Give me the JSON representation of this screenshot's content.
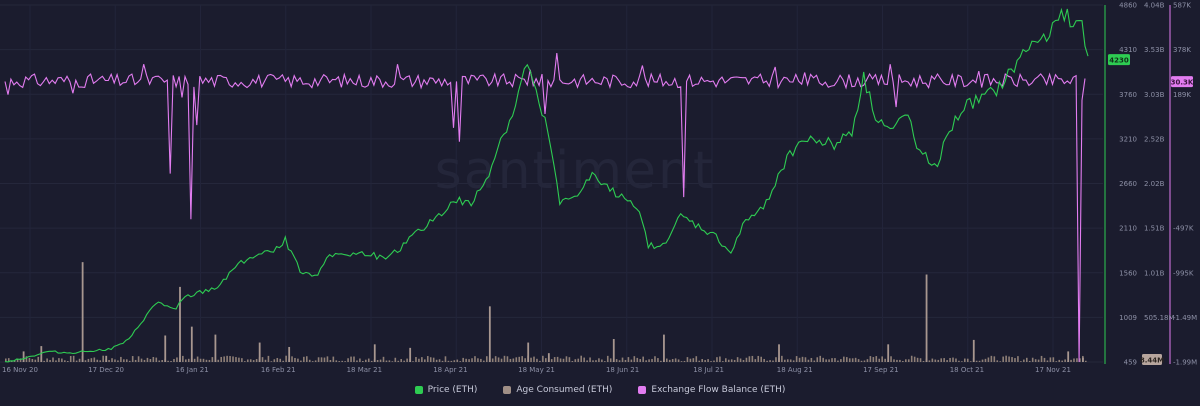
{
  "chart_data": {
    "type": "line",
    "watermark": "santiment",
    "x_ticks": [
      "16 Nov 20",
      "17 Dec 20",
      "16 Jan 21",
      "16 Feb 21",
      "18 Mar 21",
      "18 Apr 21",
      "18 May 21",
      "18 Jun 21",
      "18 Jul 21",
      "18 Aug 21",
      "17 Sep 21",
      "18 Oct 21",
      "17 Nov 21"
    ],
    "axes": {
      "price": {
        "ticks": [
          "4860",
          "4310",
          "3760",
          "3210",
          "2660",
          "2110",
          "1560",
          "1009",
          "459"
        ],
        "range": [
          459,
          4860
        ],
        "current_label": "4230",
        "color": "#2ecc52"
      },
      "age_consumed": {
        "ticks": [
          "4.04B",
          "3.53B",
          "3.03B",
          "2.52B",
          "2.02B",
          "1.51B",
          "1.01B",
          "505.18M"
        ],
        "range": [
          0,
          4.04
        ],
        "unit": "B",
        "current_label": "8.44M",
        "color": "#a08f86"
      },
      "exchange_flow": {
        "ticks": [
          "587K",
          "378K",
          "189K",
          "-497K",
          "-995K",
          "-1.49M",
          "-1.99M"
        ],
        "range": [
          -1.99,
          0.587
        ],
        "unit": "M",
        "current_label": "30.3K",
        "color": "#e27cf0"
      }
    },
    "series": [
      {
        "name": "Price (ETH)",
        "axis": "price",
        "x": [
          "2020-11-16",
          "2020-11-24",
          "2020-12-01",
          "2020-12-08",
          "2020-12-16",
          "2020-12-22",
          "2020-12-28",
          "2021-01-03",
          "2021-01-07",
          "2021-01-12",
          "2021-01-16",
          "2021-01-20",
          "2021-01-27",
          "2021-02-01",
          "2021-02-06",
          "2021-02-13",
          "2021-02-19",
          "2021-02-24",
          "2021-03-01",
          "2021-03-06",
          "2021-03-13",
          "2021-03-20",
          "2021-03-25",
          "2021-03-31",
          "2021-04-06",
          "2021-04-13",
          "2021-04-18",
          "2021-04-23",
          "2021-04-28",
          "2021-05-03",
          "2021-05-07",
          "2021-05-12",
          "2021-05-16",
          "2021-05-19",
          "2021-05-23",
          "2021-05-28",
          "2021-06-03",
          "2021-06-08",
          "2021-06-14",
          "2021-06-18",
          "2021-06-22",
          "2021-06-26",
          "2021-07-03",
          "2021-07-09",
          "2021-07-15",
          "2021-07-20",
          "2021-07-25",
          "2021-07-31",
          "2021-08-06",
          "2021-08-12",
          "2021-08-18",
          "2021-08-24",
          "2021-08-30",
          "2021-09-03",
          "2021-09-07",
          "2021-09-12",
          "2021-09-18",
          "2021-09-22",
          "2021-09-28",
          "2021-10-02",
          "2021-10-07",
          "2021-10-13",
          "2021-10-18",
          "2021-10-22",
          "2021-10-28",
          "2021-11-02",
          "2021-11-06",
          "2021-11-10",
          "2021-11-13",
          "2021-11-16",
          "2021-11-18"
        ],
        "y": [
          460,
          520,
          590,
          570,
          600,
          620,
          730,
          1040,
          1200,
          1100,
          1250,
          1300,
          1380,
          1600,
          1740,
          1800,
          1960,
          1600,
          1500,
          1800,
          1780,
          1800,
          1700,
          1900,
          2100,
          2300,
          2450,
          2400,
          2700,
          3200,
          3500,
          4150,
          3600,
          3300,
          2400,
          2500,
          2750,
          2600,
          2500,
          2400,
          1900,
          1850,
          2250,
          2130,
          2000,
          1800,
          2200,
          2350,
          2850,
          3180,
          3200,
          3150,
          3300,
          3950,
          3500,
          3300,
          3500,
          3050,
          2900,
          3300,
          3600,
          3700,
          3800,
          3980,
          4300,
          4450,
          4550,
          4760,
          4650,
          4620,
          4230
        ]
      },
      {
        "name": "Age Consumed (ETH)",
        "axis": "age_consumed",
        "spikes": [
          {
            "x": "2020-11-22",
            "v": 0.12
          },
          {
            "x": "2020-11-28",
            "v": 0.18
          },
          {
            "x": "2020-12-12",
            "v": 1.13
          },
          {
            "x": "2020-12-20",
            "v": 0.07
          },
          {
            "x": "2021-01-09",
            "v": 0.3
          },
          {
            "x": "2021-01-14",
            "v": 0.85
          },
          {
            "x": "2021-01-18",
            "v": 0.4
          },
          {
            "x": "2021-01-26",
            "v": 0.31
          },
          {
            "x": "2021-02-10",
            "v": 0.22
          },
          {
            "x": "2021-02-20",
            "v": 0.17
          },
          {
            "x": "2021-03-21",
            "v": 0.2
          },
          {
            "x": "2021-04-02",
            "v": 0.16
          },
          {
            "x": "2021-04-29",
            "v": 0.63
          },
          {
            "x": "2021-05-12",
            "v": 0.22
          },
          {
            "x": "2021-05-19",
            "v": 0.1
          },
          {
            "x": "2021-06-10",
            "v": 0.26
          },
          {
            "x": "2021-06-27",
            "v": 0.31
          },
          {
            "x": "2021-08-05",
            "v": 0.2
          },
          {
            "x": "2021-09-11",
            "v": 0.2
          },
          {
            "x": "2021-09-24",
            "v": 0.99
          },
          {
            "x": "2021-10-10",
            "v": 0.25
          },
          {
            "x": "2021-11-11",
            "v": 0.12
          },
          {
            "x": "2021-11-16",
            "v": 0.05
          }
        ],
        "baseline": 0.04
      },
      {
        "name": "Exchange Flow Balance (ETH)",
        "axis": "exchange_flow",
        "baseline": 0.04,
        "spikes": [
          {
            "x": "2020-11-17",
            "v": -0.06
          },
          {
            "x": "2020-12-09",
            "v": -0.05
          },
          {
            "x": "2021-01-02",
            "v": 0.16
          },
          {
            "x": "2021-01-11",
            "v": -0.63
          },
          {
            "x": "2021-01-15",
            "v": -0.08
          },
          {
            "x": "2021-01-18",
            "v": -0.96
          },
          {
            "x": "2021-01-20",
            "v": -0.28
          },
          {
            "x": "2021-03-29",
            "v": 0.16
          },
          {
            "x": "2021-04-17",
            "v": -0.3
          },
          {
            "x": "2021-04-19",
            "v": -0.4
          },
          {
            "x": "2021-05-13",
            "v": 0.12
          },
          {
            "x": "2021-05-18",
            "v": -0.2
          },
          {
            "x": "2021-05-22",
            "v": 0.24
          },
          {
            "x": "2021-06-20",
            "v": 0.15
          },
          {
            "x": "2021-07-04",
            "v": -0.8
          },
          {
            "x": "2021-08-04",
            "v": 0.14
          },
          {
            "x": "2021-08-14",
            "v": 0.1
          },
          {
            "x": "2021-09-12",
            "v": 0.16
          },
          {
            "x": "2021-09-14",
            "v": -0.15
          },
          {
            "x": "2021-10-12",
            "v": 0.11
          },
          {
            "x": "2021-11-15",
            "v": -1.99
          },
          {
            "x": "2021-11-16",
            "v": -0.1
          }
        ]
      }
    ],
    "legend": [
      {
        "label": "Price (ETH)",
        "color": "#2ecc52"
      },
      {
        "label": "Age Consumed (ETH)",
        "color": "#a08f86"
      },
      {
        "label": "Exchange Flow Balance (ETH)",
        "color": "#e27cf0"
      }
    ]
  }
}
